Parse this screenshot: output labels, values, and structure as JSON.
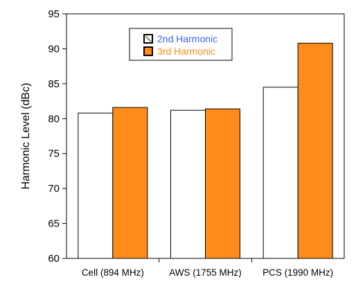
{
  "chart_data": {
    "type": "bar",
    "title": "",
    "xlabel": "",
    "ylabel": "Harmonic Level (dBc)",
    "ylim": [
      60,
      95
    ],
    "yticks": [
      60,
      65,
      70,
      75,
      80,
      85,
      90,
      95
    ],
    "grid": false,
    "legend_position": "top-center",
    "categories": [
      "Cell (894 MHz)",
      "AWS (1755 MHz)",
      "PCS (1990 MHz)"
    ],
    "series": [
      {
        "name": "2nd Harmonic",
        "values": [
          80.8,
          81.2,
          84.5
        ],
        "fill": "#ffffff",
        "stroke": "#000000",
        "text_color": "#3366ff"
      },
      {
        "name": "3rd Harmonic",
        "values": [
          81.6,
          81.4,
          90.8
        ],
        "fill": "#ff8c1a",
        "stroke": "#000000",
        "text_color": "#ff8c1a"
      }
    ]
  }
}
